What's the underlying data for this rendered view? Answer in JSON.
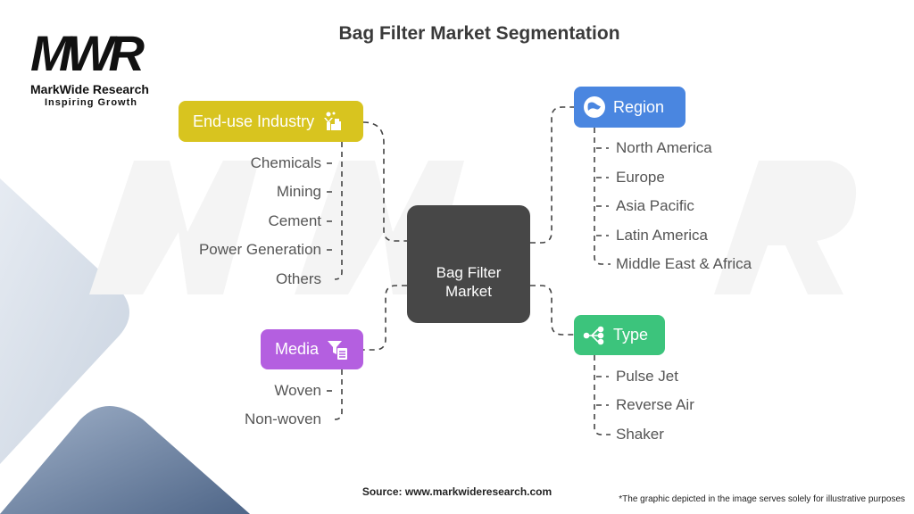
{
  "title": "Bag Filter Market Segmentation",
  "logo": {
    "mark": "MWR",
    "name": "MarkWide Research",
    "tagline": "Inspiring Growth"
  },
  "center": {
    "line1": "Bag Filter",
    "line2": "Market"
  },
  "categories": [
    {
      "label": "End-use Industry",
      "color": "#d8c41f",
      "icon": "factory-worker-icon",
      "items": [
        "Chemicals",
        "Mining",
        "Cement",
        "Power Generation",
        "Others"
      ]
    },
    {
      "label": "Media",
      "color": "#b45fe0",
      "icon": "filter-document-icon",
      "items": [
        "Woven",
        "Non-woven"
      ]
    },
    {
      "label": "Region",
      "color": "#4a86e0",
      "icon": "globe-icon",
      "items": [
        "North America",
        "Europe",
        "Asia Pacific",
        "Latin America",
        "Middle East & Africa"
      ]
    },
    {
      "label": "Type",
      "color": "#3cc47c",
      "icon": "flow-nodes-icon",
      "items": [
        "Pulse Jet",
        "Reverse Air",
        "Shaker"
      ]
    }
  ],
  "footer": {
    "source": "Source: www.markwideresearch.com",
    "disclaimer": "*The graphic depicted in the image serves solely for illustrative purposes"
  }
}
